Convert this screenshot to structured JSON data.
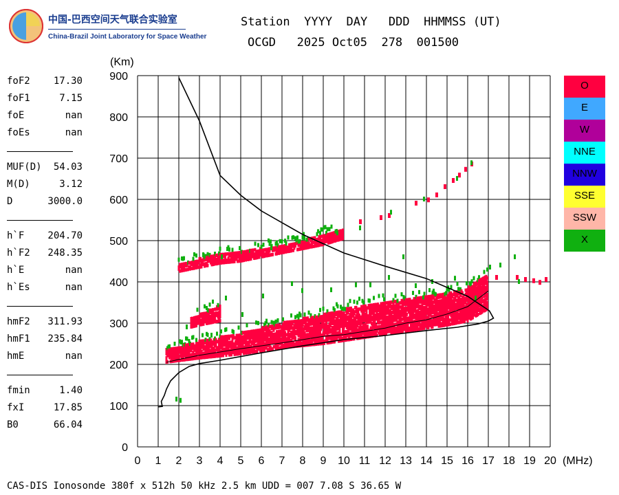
{
  "logo": {
    "name_cn": "中国-巴西空间天气联合实验室",
    "name_en": "China-Brazil Joint Laboratory for Space Weather"
  },
  "header": {
    "line1": "Station  YYYY  DAY   DDD  HHMMSS (UT)",
    "line2": "OCGD   2025 Oct05  278  001500"
  },
  "params": [
    {
      "label": "foF2",
      "value": "17.30"
    },
    {
      "label": "foF1",
      "value": "7.15"
    },
    {
      "label": "foE",
      "value": "nan"
    },
    {
      "label": "foEs",
      "value": "nan",
      "sep_after": true
    },
    {
      "label": "MUF(D)",
      "value": "54.03"
    },
    {
      "label": "M(D)",
      "value": "3.12"
    },
    {
      "label": "D",
      "value": "3000.0",
      "sep_after": true
    },
    {
      "label": "h`F",
      "value": "204.70"
    },
    {
      "label": "h`F2",
      "value": "248.35"
    },
    {
      "label": "h`E",
      "value": "nan"
    },
    {
      "label": "h`Es",
      "value": "nan",
      "sep_after": true
    },
    {
      "label": "hmF2",
      "value": "311.93"
    },
    {
      "label": "hmF1",
      "value": "235.84"
    },
    {
      "label": "hmE",
      "value": "nan",
      "sep_after": true
    },
    {
      "label": "fmin",
      "value": "1.40"
    },
    {
      "label": "fxI",
      "value": "17.85"
    },
    {
      "label": "B0",
      "value": "66.04"
    }
  ],
  "legend": [
    {
      "label": "O",
      "color": "#ff0040"
    },
    {
      "label": "E",
      "color": "#40a8ff"
    },
    {
      "label": "W",
      "color": "#b0009a"
    },
    {
      "label": "NNE",
      "color": "#00ffff"
    },
    {
      "label": "NNW",
      "color": "#2000e0"
    },
    {
      "label": "SSE",
      "color": "#ffff30"
    },
    {
      "label": "SSW",
      "color": "#ffb6a8"
    },
    {
      "label": "X",
      "color": "#10b010"
    }
  ],
  "footer": "CAS-DIS Ionosonde 380f x 512h 50 kHz 2.5 km UDD = 007 7.08 S 36.65 W",
  "chart_data": {
    "type": "scatter",
    "xlabel": "(MHz)",
    "ylabel": "(Km)",
    "xlim": [
      0,
      20
    ],
    "ylim": [
      0,
      900
    ],
    "xticks": [
      0,
      1,
      2,
      3,
      4,
      5,
      6,
      7,
      8,
      9,
      10,
      11,
      12,
      13,
      14,
      15,
      16,
      17,
      18,
      19,
      20
    ],
    "yticks": [
      0,
      100,
      200,
      300,
      400,
      500,
      600,
      700,
      800,
      900
    ],
    "grid": true,
    "series": [
      {
        "name": "O",
        "color": "#ff0040",
        "bands": [
          {
            "x": [
              1.4,
              3.0,
              5.0,
              7.0,
              9.0,
              11.0,
              13.0,
              15.0,
              16.0,
              17.0
            ],
            "y_low": [
              205,
              215,
              225,
              240,
              250,
              265,
              280,
              295,
              305,
              335
            ],
            "y_high": [
              235,
              255,
              275,
              300,
              320,
              345,
              355,
              370,
              385,
              420
            ]
          },
          {
            "x": [
              2.0,
              3.0,
              4.0,
              5.0,
              6.0,
              7.0,
              8.0,
              9.0,
              10.0
            ],
            "y_low": [
              425,
              435,
              445,
              450,
              460,
              470,
              480,
              490,
              505
            ],
            "y_high": [
              440,
              455,
              465,
              470,
              480,
              488,
              498,
              515,
              525
            ]
          },
          {
            "x": [
              2.6,
              3.0,
              3.5,
              4.0
            ],
            "y_low": [
              290,
              295,
              300,
              305
            ],
            "y_high": [
              310,
              320,
              330,
              345
            ]
          }
        ],
        "points": [
          {
            "x": 10.8,
            "y": 545
          },
          {
            "x": 11.8,
            "y": 555
          },
          {
            "x": 12.2,
            "y": 560
          },
          {
            "x": 13.5,
            "y": 590
          },
          {
            "x": 14.1,
            "y": 598
          },
          {
            "x": 14.5,
            "y": 610
          },
          {
            "x": 14.9,
            "y": 630
          },
          {
            "x": 15.3,
            "y": 645
          },
          {
            "x": 15.6,
            "y": 658
          },
          {
            "x": 15.9,
            "y": 672
          },
          {
            "x": 16.2,
            "y": 685
          },
          {
            "x": 18.4,
            "y": 410
          },
          {
            "x": 18.8,
            "y": 405
          },
          {
            "x": 19.2,
            "y": 402
          },
          {
            "x": 19.5,
            "y": 398
          },
          {
            "x": 19.8,
            "y": 405
          },
          {
            "x": 17.4,
            "y": 410
          }
        ]
      },
      {
        "name": "X",
        "color": "#10b010",
        "points": [
          {
            "x": 1.9,
            "y": 115
          },
          {
            "x": 2.1,
            "y": 112
          },
          {
            "x": 3.2,
            "y": 465
          },
          {
            "x": 4.1,
            "y": 460
          },
          {
            "x": 6.5,
            "y": 482
          },
          {
            "x": 8.1,
            "y": 505
          },
          {
            "x": 9.7,
            "y": 518
          },
          {
            "x": 10.8,
            "y": 530
          },
          {
            "x": 12.3,
            "y": 568
          },
          {
            "x": 13.9,
            "y": 600
          },
          {
            "x": 15.5,
            "y": 650
          },
          {
            "x": 16.2,
            "y": 688
          },
          {
            "x": 18.3,
            "y": 460
          },
          {
            "x": 18.5,
            "y": 400
          },
          {
            "x": 2.4,
            "y": 290
          },
          {
            "x": 4.3,
            "y": 360
          },
          {
            "x": 6.1,
            "y": 365
          },
          {
            "x": 8.0,
            "y": 378
          },
          {
            "x": 9.4,
            "y": 380
          },
          {
            "x": 10.6,
            "y": 392
          },
          {
            "x": 11.3,
            "y": 392
          },
          {
            "x": 12.2,
            "y": 410
          },
          {
            "x": 12.9,
            "y": 460
          },
          {
            "x": 14.3,
            "y": 400
          },
          {
            "x": 15.4,
            "y": 408
          },
          {
            "x": 17.6,
            "y": 440
          },
          {
            "x": 17.1,
            "y": 435
          },
          {
            "x": 7.5,
            "y": 395
          },
          {
            "x": 5.1,
            "y": 320
          },
          {
            "x": 16.4,
            "y": 360
          },
          {
            "x": 3.6,
            "y": 270
          },
          {
            "x": 13.5,
            "y": 390
          }
        ]
      }
    ],
    "profile": {
      "x": [
        1.0,
        1.2,
        1.15,
        1.3,
        1.4,
        1.6,
        2.0,
        2.5,
        3.0,
        4.0,
        6.0,
        8.0,
        10.0,
        12.0,
        14.0,
        15.5,
        16.5,
        17.0,
        17.25,
        17.05,
        16.0,
        14.0,
        12.0,
        10.0,
        8.0,
        6.0,
        5.0,
        4.0,
        3.0,
        2.0
      ],
      "y": [
        97,
        98,
        110,
        125,
        140,
        160,
        180,
        195,
        202,
        210,
        228,
        245,
        260,
        270,
        282,
        290,
        298,
        305,
        312,
        330,
        365,
        408,
        438,
        470,
        515,
        572,
        610,
        658,
        790,
        895
      ]
    },
    "trace": {
      "x": [
        1.4,
        2.0,
        3.0,
        4.0,
        5.0,
        6.0,
        7.0,
        8.0,
        9.0,
        10.0,
        11.0,
        12.0,
        13.0,
        14.0,
        15.0,
        16.0,
        17.0
      ],
      "y": [
        205,
        212,
        222,
        230,
        238,
        245,
        252,
        260,
        268,
        272,
        280,
        288,
        300,
        308,
        322,
        340,
        378
      ]
    }
  }
}
